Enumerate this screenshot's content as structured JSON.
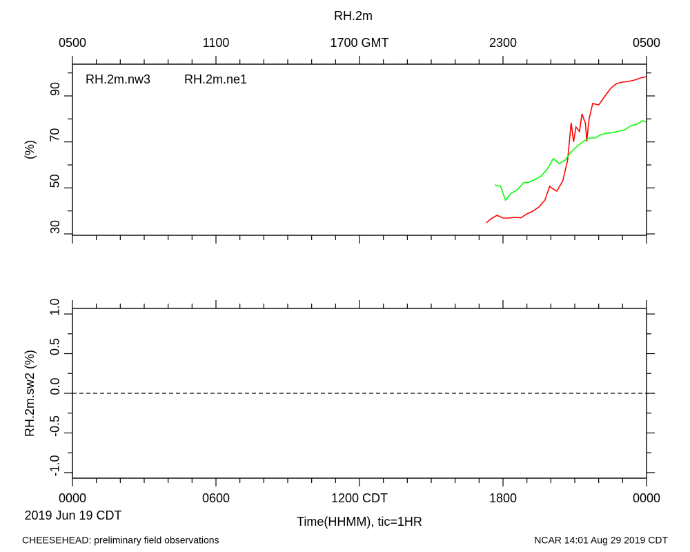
{
  "chart_data": [
    {
      "type": "line",
      "title": "RH.2m",
      "ylabel": "(%)",
      "grid": false,
      "legend": "top-left",
      "xlim": [
        0,
        24
      ],
      "top_xticks": [
        {
          "value": 0,
          "label": "0500"
        },
        {
          "value": 6,
          "label": "1100"
        },
        {
          "value": 12,
          "label": "1700 GMT"
        },
        {
          "value": 18,
          "label": "2300"
        },
        {
          "value": 24,
          "label": "0500"
        }
      ],
      "xminor_ticks": [
        1,
        2,
        3,
        4,
        5,
        7,
        8,
        9,
        10,
        11,
        13,
        14,
        15,
        16,
        17,
        19,
        20,
        21,
        22,
        23
      ],
      "ylim": [
        29.4,
        103.8
      ],
      "yticks": [
        30,
        50,
        70,
        90
      ],
      "yminor_ticks": [
        40,
        60,
        80,
        100
      ],
      "series": [
        {
          "name": "RH.2m.nw3",
          "color": "#ff0000",
          "x": [
            17.3,
            17.5,
            17.75,
            18.0,
            18.25,
            18.5,
            18.75,
            19.0,
            19.25,
            19.5,
            19.75,
            19.95,
            20.1,
            20.25,
            20.5,
            20.7,
            20.85,
            20.95,
            21.05,
            21.2,
            21.3,
            21.45,
            21.5,
            21.6,
            21.75,
            22.0,
            22.25,
            22.5,
            22.75,
            23.0,
            23.25,
            23.5,
            23.75,
            24.0
          ],
          "values": [
            34.8,
            36.6,
            38.1,
            36.9,
            36.9,
            37.2,
            37.0,
            38.7,
            39.9,
            41.7,
            44.7,
            50.7,
            49.5,
            48.6,
            53.1,
            62.0,
            78.3,
            70.0,
            76.5,
            74.5,
            82.2,
            78.0,
            70.2,
            80.0,
            86.7,
            86.1,
            89.7,
            93.3,
            95.4,
            96.0,
            96.3,
            96.9,
            97.8,
            98.4
          ]
        },
        {
          "name": "RH.2m.ne1",
          "color": "#00ff00",
          "x": [
            17.65,
            17.9,
            18.1,
            18.35,
            18.6,
            18.85,
            19.1,
            19.35,
            19.6,
            19.85,
            20.1,
            20.35,
            20.6,
            20.85,
            21.1,
            21.35,
            21.6,
            21.85,
            22.1,
            22.35,
            22.6,
            22.85,
            23.1,
            23.35,
            23.6,
            23.85,
            24.0
          ],
          "values": [
            51.3,
            50.7,
            44.7,
            47.7,
            49.2,
            52.2,
            52.5,
            53.7,
            55.2,
            58.2,
            62.7,
            60.6,
            62.1,
            65.7,
            68.1,
            70.2,
            71.7,
            71.7,
            73.2,
            73.8,
            74.1,
            74.7,
            75.3,
            77.1,
            77.7,
            79.2,
            78.6
          ]
        }
      ]
    },
    {
      "type": "line",
      "ylabel": "RH.2m.sw2 (%)",
      "xlabel": "Time(HHMM), tic=1HR",
      "date_label": "2019 Jun 19 CDT",
      "grid": false,
      "xlim": [
        0,
        24
      ],
      "xticks": [
        {
          "value": 0,
          "label": "0000"
        },
        {
          "value": 6,
          "label": "0600"
        },
        {
          "value": 12,
          "label": "1200 CDT"
        },
        {
          "value": 18,
          "label": "1800"
        },
        {
          "value": 24,
          "label": "0000"
        }
      ],
      "xminor_ticks": [
        1,
        2,
        3,
        4,
        5,
        7,
        8,
        9,
        10,
        11,
        13,
        14,
        15,
        16,
        17,
        19,
        20,
        21,
        22,
        23
      ],
      "ylim": [
        -1.07,
        1.07
      ],
      "yticks": [
        {
          "value": -1.0,
          "label": "-1.0"
        },
        {
          "value": -0.5,
          "label": "-0.5"
        },
        {
          "value": 0.0,
          "label": "0.0"
        },
        {
          "value": 0.5,
          "label": "0.5"
        },
        {
          "value": 1.0,
          "label": "1.0"
        }
      ],
      "yminor_ticks": [
        -0.75,
        -0.25,
        0.25,
        0.75
      ],
      "reference_line": 0,
      "series": []
    }
  ],
  "footer_left": "CHEESEHEAD: preliminary field observations",
  "footer_right": "NCAR 14:01 Aug 29 2019 CDT"
}
